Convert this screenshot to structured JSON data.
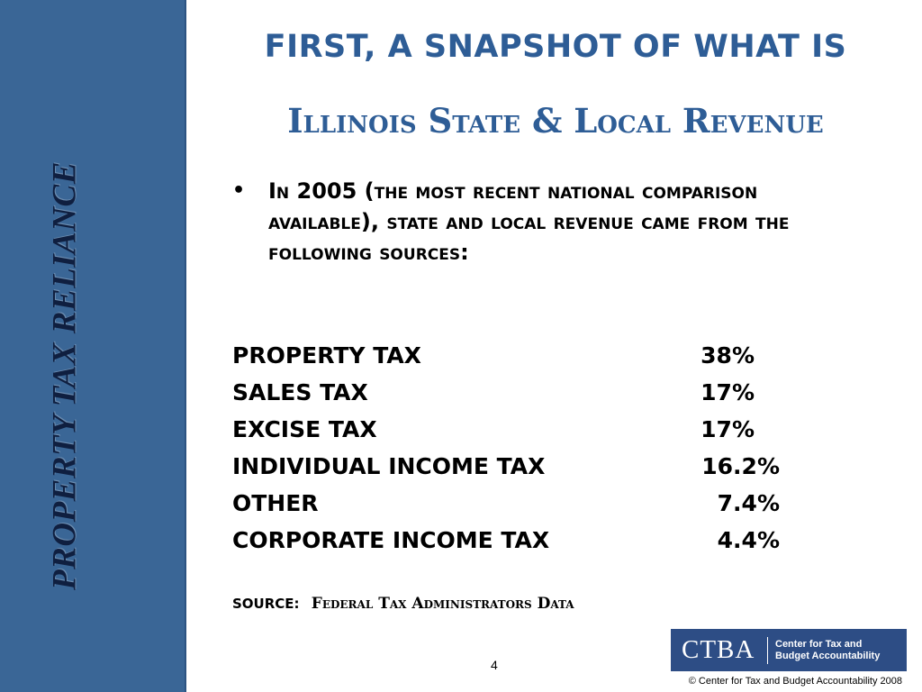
{
  "sidebar": {
    "vertical_title": "PROPERTY TAX RELIANCE"
  },
  "heading": {
    "line1": "FIRST, A SNAPSHOT OF WHAT IS",
    "line2": "Illinois State & Local Revenue"
  },
  "bullet": {
    "marker": "•",
    "text": "In 2005 (the most recent national comparison available), state and local revenue came from the following sources:"
  },
  "revenue_sources": [
    {
      "label": "PROPERTY TAX",
      "value": "38%"
    },
    {
      "label": "SALES TAX",
      "value": "17%"
    },
    {
      "label": "EXCISE TAX",
      "value": "17%"
    },
    {
      "label": "INDIVIDUAL INCOME TAX",
      "value": "16.2%"
    },
    {
      "label": "OTHER",
      "value": "7.4%"
    },
    {
      "label": "CORPORATE INCOME TAX",
      "value": "4.4%"
    }
  ],
  "source": {
    "prefix": "SOURCE:",
    "body": "Federal Tax Administrators Data"
  },
  "footer": {
    "page_number": "4",
    "logo_mark": "CTBA",
    "logo_text_line1": "Center for Tax and",
    "logo_text_line2": "Budget Accountability",
    "copyright": "©  Center for Tax and Budget Accountability 2008"
  },
  "colors": {
    "side_band": "#3a6696",
    "heading": "#2e5d96",
    "logo_bg": "#2d4d85"
  }
}
